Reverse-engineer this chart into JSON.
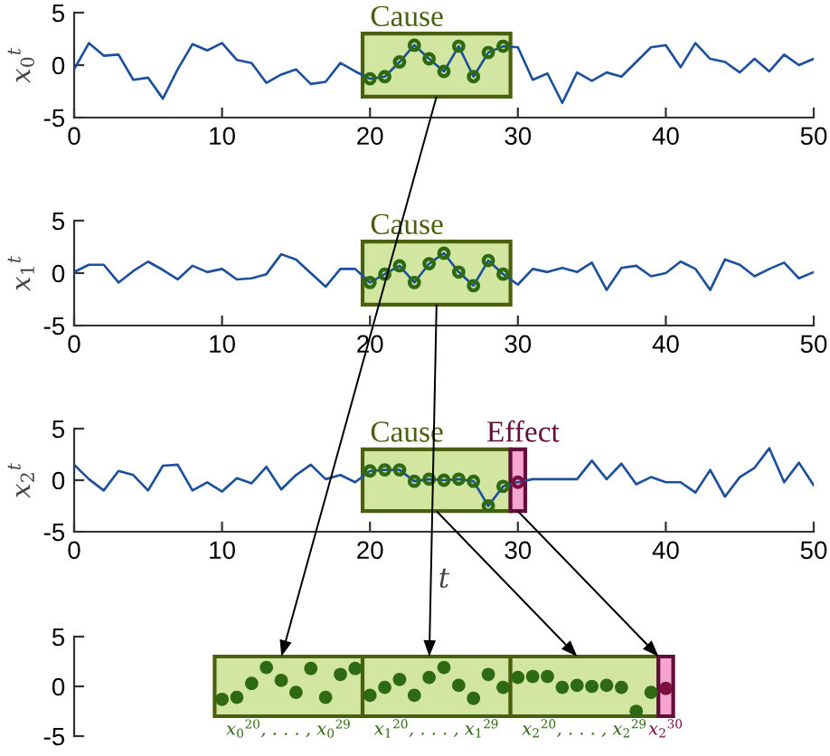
{
  "chart_data": [
    {
      "type": "line",
      "ylabel": "x$_{0}$$^{t}$",
      "x": [
        0,
        1,
        2,
        3,
        4,
        5,
        6,
        7,
        8,
        9,
        10,
        11,
        12,
        13,
        14,
        15,
        16,
        17,
        18,
        19,
        20,
        21,
        22,
        23,
        24,
        25,
        26,
        27,
        28,
        29,
        30,
        31,
        32,
        33,
        34,
        35,
        36,
        37,
        38,
        39,
        40,
        41,
        42,
        43,
        44,
        45,
        46,
        47,
        48,
        49,
        50
      ],
      "xlim": [
        0,
        50
      ],
      "xticks": [
        0,
        10,
        20,
        30,
        40,
        50
      ],
      "ylim": [
        -5,
        5
      ],
      "yticks": [
        -5,
        0,
        5
      ],
      "series": [
        {
          "color": "#1c4f9c",
          "values": [
            -0.4,
            2.1,
            0.9,
            1.0,
            -1.4,
            -1.2,
            -3.2,
            -0.4,
            2.0,
            1.4,
            2.1,
            0.5,
            0.2,
            -1.7,
            -0.9,
            -0.4,
            -1.8,
            -1.6,
            0.2,
            -0.6,
            -1.3,
            -1.1,
            0.3,
            1.9,
            0.6,
            -0.6,
            1.8,
            -1.1,
            1.2,
            1.8,
            1.7,
            -1.4,
            -0.8,
            -3.6,
            -0.7,
            -1.5,
            -0.7,
            -1.1,
            0.3,
            1.7,
            1.9,
            -0.2,
            2.1,
            0.6,
            0.3,
            -0.7,
            0.6,
            -0.6,
            1.0,
            0.0,
            0.6
          ]
        },
        {
          "type": "scatter",
          "color": "#2d6a12",
          "x": [
            20,
            21,
            22,
            23,
            24,
            25,
            26,
            27,
            28,
            29
          ],
          "values": [
            -1.3,
            -1.1,
            0.3,
            1.9,
            0.6,
            -0.6,
            1.8,
            -1.1,
            1.2,
            1.8
          ]
        }
      ],
      "bands": [
        {
          "axis": "x",
          "from": 19.5,
          "to": 29.5,
          "label": "Cause",
          "color": "#d2e6a2"
        }
      ]
    },
    {
      "type": "line",
      "ylabel": "x$_{1}$$^{t}$",
      "x": [
        0,
        1,
        2,
        3,
        4,
        5,
        6,
        7,
        8,
        9,
        10,
        11,
        12,
        13,
        14,
        15,
        16,
        17,
        18,
        19,
        20,
        21,
        22,
        23,
        24,
        25,
        26,
        27,
        28,
        29,
        30,
        31,
        32,
        33,
        34,
        35,
        36,
        37,
        38,
        39,
        40,
        41,
        42,
        43,
        44,
        45,
        46,
        47,
        48,
        49,
        50
      ],
      "xlim": [
        0,
        50
      ],
      "xticks": [
        0,
        10,
        20,
        30,
        40,
        50
      ],
      "ylim": [
        -5,
        5
      ],
      "yticks": [
        -5,
        0,
        5
      ],
      "series": [
        {
          "color": "#1c4f9c",
          "values": [
            0.1,
            0.8,
            0.8,
            -0.9,
            0.2,
            1.1,
            0.3,
            -0.6,
            0.7,
            0.1,
            0.4,
            -0.6,
            -0.5,
            -0.1,
            1.8,
            1.3,
            0.0,
            -1.3,
            0.4,
            0.4,
            -0.9,
            -0.1,
            0.7,
            -0.9,
            0.9,
            1.9,
            0.1,
            -1.2,
            1.2,
            -0.1,
            -1.1,
            0.4,
            0.1,
            0.5,
            0.1,
            1.0,
            -1.6,
            0.5,
            0.7,
            -0.3,
            0.0,
            1.1,
            0.4,
            -1.6,
            1.3,
            0.8,
            -0.3,
            0.4,
            1.0,
            -0.5,
            0.1
          ]
        },
        {
          "type": "scatter",
          "color": "#2d6a12",
          "x": [
            20,
            21,
            22,
            23,
            24,
            25,
            26,
            27,
            28,
            29
          ],
          "values": [
            -0.9,
            -0.1,
            0.7,
            -0.9,
            0.9,
            1.9,
            0.1,
            -1.2,
            1.2,
            -0.1
          ]
        }
      ],
      "bands": [
        {
          "axis": "x",
          "from": 19.5,
          "to": 29.5,
          "label": "Cause",
          "color": "#d2e6a2"
        }
      ]
    },
    {
      "type": "line",
      "ylabel": "x$_{2}$$^{t}$",
      "xlabel": "t",
      "x": [
        0,
        1,
        2,
        3,
        4,
        5,
        6,
        7,
        8,
        9,
        10,
        11,
        12,
        13,
        14,
        15,
        16,
        17,
        18,
        19,
        20,
        21,
        22,
        23,
        24,
        25,
        26,
        27,
        28,
        29,
        30,
        31,
        32,
        33,
        34,
        35,
        36,
        37,
        38,
        39,
        40,
        41,
        42,
        43,
        44,
        45,
        46,
        47,
        48,
        49,
        50
      ],
      "xlim": [
        0,
        50
      ],
      "xticks": [
        0,
        10,
        20,
        30,
        40,
        50
      ],
      "ylim": [
        -5,
        5
      ],
      "yticks": [
        -5,
        0,
        5
      ],
      "series": [
        {
          "color": "#1c4f9c",
          "values": [
            1.5,
            0.1,
            -1.0,
            0.9,
            0.5,
            -1.0,
            1.4,
            1.5,
            -1.0,
            -0.2,
            -1.1,
            0.2,
            -0.3,
            1.3,
            -0.9,
            0.5,
            1.5,
            0.1,
            0.5,
            -0.2,
            0.9,
            1.0,
            1.0,
            -0.1,
            0.1,
            0.0,
            0.1,
            -0.1,
            -2.5,
            -0.6,
            -0.2,
            0.1,
            0.1,
            0.1,
            0.1,
            1.9,
            0.1,
            1.6,
            -0.4,
            0.3,
            -0.2,
            -0.2,
            -1.2,
            1.0,
            -1.6,
            0.3,
            1.2,
            3.1,
            -0.2,
            1.7,
            -0.5
          ]
        },
        {
          "type": "scatter",
          "color": "#2d6a12",
          "x": [
            20,
            21,
            22,
            23,
            24,
            25,
            26,
            27,
            28,
            29
          ],
          "values": [
            0.9,
            1.0,
            1.0,
            -0.1,
            0.1,
            0.0,
            0.1,
            -0.1,
            -2.5,
            -0.6
          ]
        },
        {
          "type": "scatter",
          "color": "#7a1040",
          "x": [
            30
          ],
          "values": [
            -0.2
          ]
        }
      ],
      "bands": [
        {
          "axis": "x",
          "from": 19.5,
          "to": 29.5,
          "label": "Cause",
          "color": "#d2e6a2"
        },
        {
          "axis": "x",
          "from": 29.5,
          "to": 30.5,
          "label": "Effect",
          "color": "#f6a5d0"
        }
      ]
    },
    {
      "type": "scatter",
      "xlim": [
        0,
        50
      ],
      "ylim": [
        -5,
        5
      ],
      "yticks": [
        -5,
        0,
        5
      ],
      "tick_labels": "y",
      "series": [
        {
          "name": "x$_{0}$$^{20}$, . . . , x$_{0}$$^{29}$",
          "color": "#2d6a12",
          "x": [
            10,
            11,
            12,
            13,
            14,
            15,
            16,
            17,
            18,
            19
          ],
          "values": [
            -1.3,
            -1.1,
            0.3,
            1.9,
            0.6,
            -0.6,
            1.8,
            -1.1,
            1.2,
            1.8
          ]
        },
        {
          "name": "x$_{1}$$^{20}$, . . . , x$_{1}$$^{29}$",
          "color": "#2d6a12",
          "x": [
            20,
            21,
            22,
            23,
            24,
            25,
            26,
            27,
            28,
            29
          ],
          "values": [
            -0.9,
            -0.1,
            0.7,
            -0.9,
            0.9,
            1.9,
            0.1,
            -1.2,
            1.2,
            -0.1
          ]
        },
        {
          "name": "x$_{2}$$^{20}$, . . . , x$_{2}$$^{29}$",
          "color": "#2d6a12",
          "x": [
            30,
            31,
            32,
            33,
            34,
            35,
            36,
            37,
            38,
            39
          ],
          "values": [
            0.9,
            1.0,
            1.0,
            -0.1,
            0.1,
            0.0,
            0.1,
            -0.1,
            -2.5,
            -0.6
          ]
        },
        {
          "name": "x$_{2}$$^{30}$",
          "color": "#7a1040",
          "x": [
            40
          ],
          "values": [
            -0.2
          ]
        }
      ],
      "bands": [
        {
          "axis": "x",
          "from": 9.5,
          "to": 19.5,
          "color": "#d2e6a2"
        },
        {
          "axis": "x",
          "from": 19.5,
          "to": 29.5,
          "color": "#d2e6a2"
        },
        {
          "axis": "x",
          "from": 29.5,
          "to": 39.5,
          "color": "#d2e6a2"
        },
        {
          "axis": "x",
          "from": 39.5,
          "to": 40.5,
          "color": "#f6a5d0"
        }
      ]
    }
  ]
}
